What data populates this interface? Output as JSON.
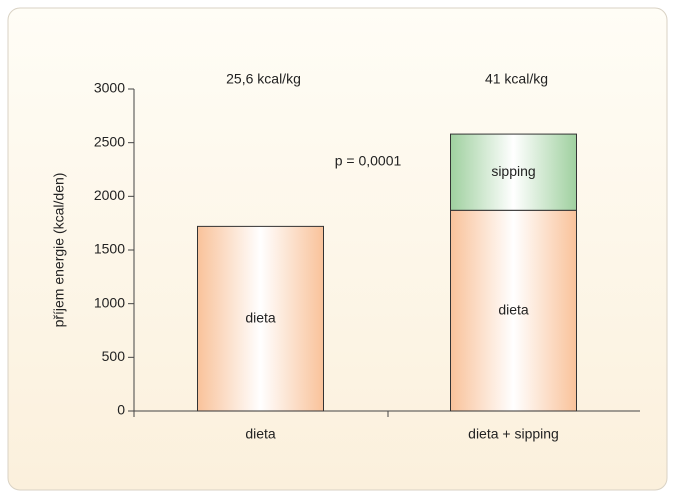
{
  "chart_data": {
    "type": "stacked-bar",
    "categories": [
      "dieta",
      "dieta + sipping"
    ],
    "series": [
      {
        "name": "dieta",
        "color": "#f9c29a",
        "values": [
          1720,
          1870
        ]
      },
      {
        "name": "sipping",
        "color": "#9fd09f",
        "values": [
          null,
          710
        ]
      }
    ],
    "bar_annotations": [
      "25,6 kcal/kg",
      "41 kcal/kg"
    ],
    "annotation": "p = 0,0001",
    "y_label": "příjem energie (kcal/den)",
    "ylim": [
      0,
      3000
    ],
    "yticks": [
      0,
      500,
      1000,
      1500,
      2000,
      2500,
      3000
    ]
  }
}
